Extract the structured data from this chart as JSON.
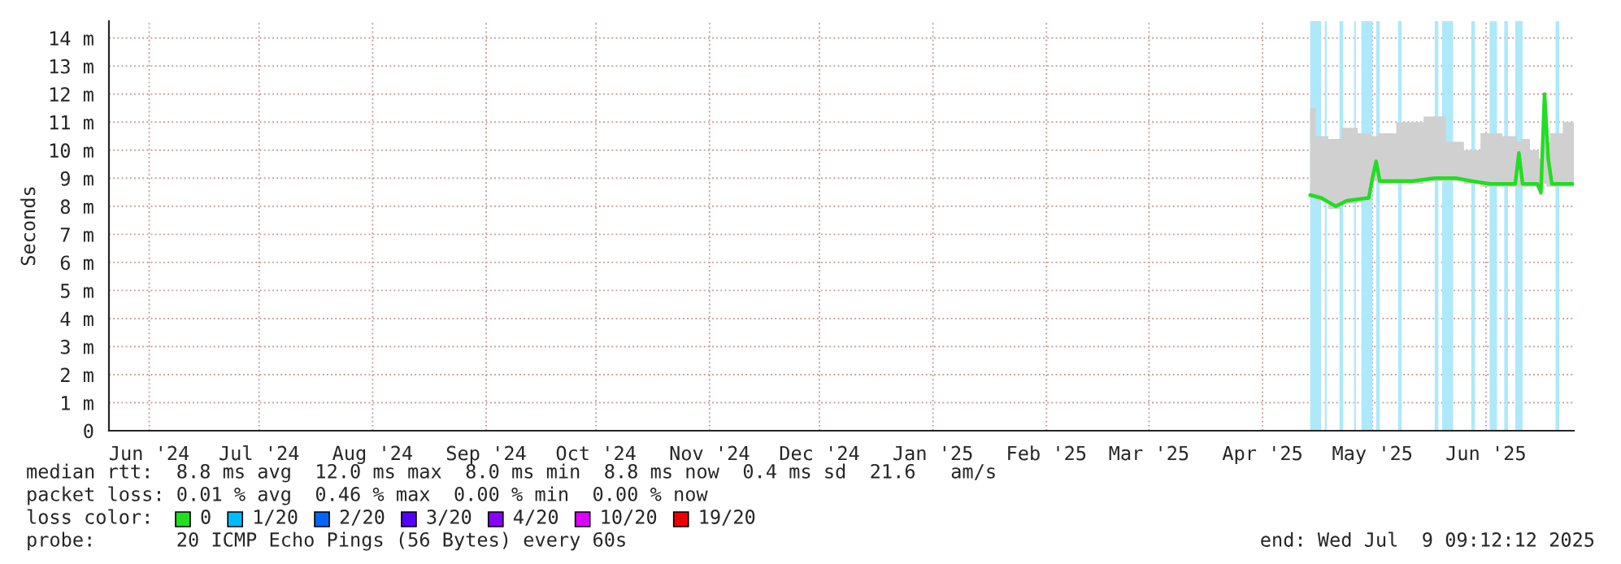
{
  "chart_data": {
    "type": "line",
    "ylabel": "Seconds",
    "x": [
      "2025-04-28",
      "2025-05-01",
      "2025-05-05",
      "2025-05-08",
      "2025-05-14",
      "2025-05-15",
      "2025-05-16",
      "2025-05-17",
      "2025-05-26",
      "2025-06-01",
      "2025-06-07",
      "2025-06-11",
      "2025-06-16",
      "2025-06-23",
      "2025-06-24",
      "2025-06-25",
      "2025-06-29",
      "2025-06-30",
      "2025-07-01",
      "2025-07-02",
      "2025-07-03",
      "2025-07-09"
    ],
    "series": [
      {
        "color": "#22dd22",
        "values": [
          8.4,
          8.3,
          8.0,
          8.2,
          8.3,
          9.0,
          9.6,
          8.9,
          8.9,
          9.0,
          9.0,
          8.9,
          8.8,
          8.8,
          9.9,
          8.8,
          8.8,
          8.5,
          12.0,
          9.7,
          8.8,
          8.8
        ],
        "lower": [
          8.3,
          8.2,
          7.9,
          8.1,
          8.2,
          8.9,
          8.9,
          8.8,
          8.8,
          8.9,
          8.9,
          8.8,
          8.7,
          8.7,
          8.7,
          8.7,
          8.7,
          8.4,
          8.8,
          8.7,
          8.7,
          8.7
        ],
        "upper": [
          11.5,
          10.5,
          10.4,
          10.8,
          10.6,
          10.5,
          10.5,
          10.6,
          11.0,
          11.2,
          10.3,
          10.0,
          10.6,
          10.5,
          10.3,
          10.4,
          10.0,
          9.7,
          12.0,
          10.3,
          10.6,
          11.0
        ]
      }
    ],
    "xlim": [
      "2024-06-04",
      "2025-07-09"
    ],
    "xticks": [
      {
        "value": "2024-06-15",
        "label": "Jun '24"
      },
      {
        "value": "2024-07-15",
        "label": "Jul '24"
      },
      {
        "value": "2024-08-15",
        "label": "Aug '24"
      },
      {
        "value": "2024-09-15",
        "label": "Sep '24"
      },
      {
        "value": "2024-10-15",
        "label": "Oct '24"
      },
      {
        "value": "2024-11-15",
        "label": "Nov '24"
      },
      {
        "value": "2024-12-15",
        "label": "Dec '24"
      },
      {
        "value": "2025-01-15",
        "label": "Jan '25"
      },
      {
        "value": "2025-02-15",
        "label": "Feb '25"
      },
      {
        "value": "2025-03-15",
        "label": "Mar '25"
      },
      {
        "value": "2025-04-15",
        "label": "Apr '25"
      },
      {
        "value": "2025-05-15",
        "label": "May '25"
      },
      {
        "value": "2025-06-15",
        "label": "Jun '25"
      }
    ],
    "ylim": [
      0,
      14.6
    ],
    "yticks": [
      0,
      {
        "value": 1,
        "label": "1 m"
      },
      {
        "value": 2,
        "label": "2 m"
      },
      {
        "value": 3,
        "label": "3 m"
      },
      {
        "value": 4,
        "label": "4 m"
      },
      {
        "value": 5,
        "label": "5 m"
      },
      {
        "value": 6,
        "label": "6 m"
      },
      {
        "value": 7,
        "label": "7 m"
      },
      {
        "value": 8,
        "label": "8 m"
      },
      {
        "value": 9,
        "label": "9 m"
      },
      {
        "value": 10,
        "label": "10 m"
      },
      {
        "value": 11,
        "label": "11 m"
      },
      {
        "value": 12,
        "label": "12 m"
      },
      {
        "value": 13,
        "label": "13 m"
      },
      {
        "value": 14,
        "label": "14 m"
      }
    ],
    "bands": [
      {
        "axis": "x",
        "from": "2025-04-28",
        "to": "2025-05-01",
        "color": "#aee8fb"
      },
      {
        "axis": "x",
        "from": "2025-05-02",
        "to": "2025-05-02T12:00",
        "color": "#aee8fb"
      },
      {
        "axis": "x",
        "from": "2025-05-06",
        "to": "2025-05-07",
        "color": "#aee8fb"
      },
      {
        "axis": "x",
        "from": "2025-05-10",
        "to": "2025-05-10T12:00",
        "color": "#aee8fb"
      },
      {
        "axis": "x",
        "from": "2025-05-12",
        "to": "2025-05-15",
        "color": "#aee8fb"
      },
      {
        "axis": "x",
        "from": "2025-05-16",
        "to": "2025-05-17",
        "color": "#aee8fb"
      },
      {
        "axis": "x",
        "from": "2025-05-22",
        "to": "2025-05-23",
        "color": "#aee8fb"
      },
      {
        "axis": "x",
        "from": "2025-06-01",
        "to": "2025-06-02",
        "color": "#aee8fb"
      },
      {
        "axis": "x",
        "from": "2025-06-03",
        "to": "2025-06-06",
        "color": "#aee8fb"
      },
      {
        "axis": "x",
        "from": "2025-06-11",
        "to": "2025-06-12",
        "color": "#aee8fb"
      },
      {
        "axis": "x",
        "from": "2025-06-16",
        "to": "2025-06-18",
        "color": "#aee8fb"
      },
      {
        "axis": "x",
        "from": "2025-06-20",
        "to": "2025-06-21",
        "color": "#aee8fb"
      },
      {
        "axis": "x",
        "from": "2025-06-23",
        "to": "2025-06-25",
        "color": "#aee8fb"
      },
      {
        "axis": "x",
        "from": "2025-07-04",
        "to": "2025-07-05",
        "color": "#aee8fb"
      }
    ],
    "annotations": [
      "median rtt:  8.8 ms avg  12.0 ms max  8.0 ms min  8.8 ms now  0.4 ms sd  21.6   am/s",
      "packet loss: 0.01 % avg  0.46 % max  0.00 % min  0.00 % now",
      "loss color:",
      "0",
      "1/20",
      "2/20",
      "3/20",
      "4/20",
      "10/20",
      "19/20",
      "probe:       20 ICMP Echo Pings (56 Bytes) every 60s",
      "end: Wed Jul  9 09:12:12 2025"
    ],
    "grid": true,
    "marker": "none",
    "line_style": "solid"
  }
}
